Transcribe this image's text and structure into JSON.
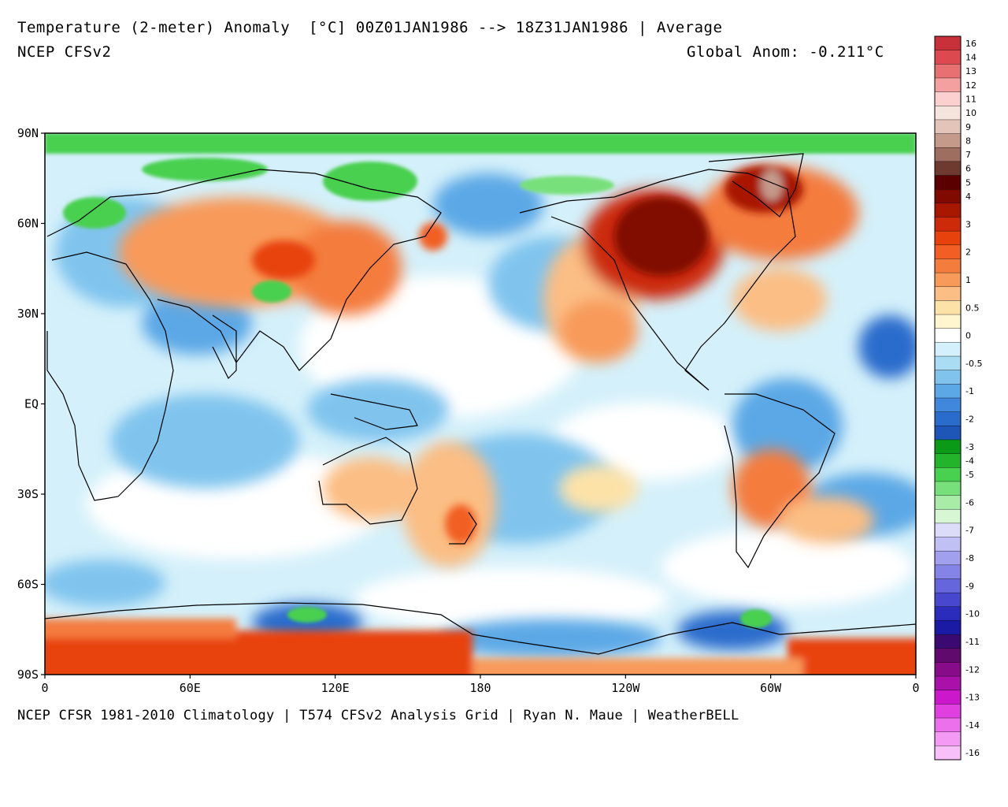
{
  "title": "Temperature (2-meter) Anomaly  [°C] 00Z01JAN1986 --> 18Z31JAN1986 | Average",
  "model": "NCEP CFSv2",
  "global_anom": "Global Anom: -0.211°C",
  "footer": "NCEP CFSR 1981-2010 Climatology | T574 CFSv2 Analysis Grid | Ryan N. Maue | WeatherBELL",
  "lat_ticks": [
    "90N",
    "60N",
    "30N",
    "EQ",
    "30S",
    "60S",
    "90S"
  ],
  "lon_ticks": [
    "0",
    "60E",
    "120E",
    "180",
    "120W",
    "60W",
    "0"
  ],
  "legend": [
    {
      "label": "16",
      "color": "#c8303a"
    },
    {
      "label": "14",
      "color": "#dc4a50"
    },
    {
      "label": "13",
      "color": "#e87072"
    },
    {
      "label": "12",
      "color": "#f4a0a0"
    },
    {
      "label": "11",
      "color": "#fbd0cf"
    },
    {
      "label": "10",
      "color": "#f5e4dc"
    },
    {
      "label": "9",
      "color": "#e2c4b8"
    },
    {
      "label": "8",
      "color": "#c49a8a"
    },
    {
      "label": "7",
      "color": "#9e6e60"
    },
    {
      "label": "6",
      "color": "#6e3a30"
    },
    {
      "label": "5",
      "color": "#5a0000"
    },
    {
      "label": "4",
      "color": "#800a00"
    },
    {
      "label": "",
      "color": "#a81800"
    },
    {
      "label": "3",
      "color": "#cc2a08"
    },
    {
      "label": "",
      "color": "#e8420c"
    },
    {
      "label": "2",
      "color": "#f25e24"
    },
    {
      "label": "",
      "color": "#f47c3c"
    },
    {
      "label": "1",
      "color": "#f89a5a"
    },
    {
      "label": "",
      "color": "#fbbe84"
    },
    {
      "label": "0.5",
      "color": "#fde2a8"
    },
    {
      "label": "",
      "color": "#fff6d0"
    },
    {
      "label": "0",
      "color": "#ffffff"
    },
    {
      "label": "",
      "color": "#d4f0fa"
    },
    {
      "label": "-0.5",
      "color": "#aadcf4"
    },
    {
      "label": "",
      "color": "#80c4ee"
    },
    {
      "label": "-1",
      "color": "#5ca8e6"
    },
    {
      "label": "",
      "color": "#4088dc"
    },
    {
      "label": "-2",
      "color": "#2a6ccc"
    },
    {
      "label": "",
      "color": "#1e56b8"
    },
    {
      "label": "-3",
      "color": "#0a9a18"
    },
    {
      "label": "-4",
      "color": "#24b42c"
    },
    {
      "label": "-5",
      "color": "#48d050"
    },
    {
      "label": "",
      "color": "#78e07a"
    },
    {
      "label": "-6",
      "color": "#a8eca8"
    },
    {
      "label": "",
      "color": "#d6f6d4"
    },
    {
      "label": "-7",
      "color": "#dcdcf8"
    },
    {
      "label": "",
      "color": "#c0c0f4"
    },
    {
      "label": "-8",
      "color": "#a0a0ee"
    },
    {
      "label": "",
      "color": "#8484e6"
    },
    {
      "label": "-9",
      "color": "#6666dc"
    },
    {
      "label": "",
      "color": "#4848ce"
    },
    {
      "label": "-10",
      "color": "#2c2cbc"
    },
    {
      "label": "",
      "color": "#1a1aa4"
    },
    {
      "label": "-11",
      "color": "#3a0a70"
    },
    {
      "label": "",
      "color": "#600a6e"
    },
    {
      "label": "-12",
      "color": "#880c8a"
    },
    {
      "label": "",
      "color": "#aa10aa"
    },
    {
      "label": "-13",
      "color": "#cc18cc"
    },
    {
      "label": "",
      "color": "#e040e0"
    },
    {
      "label": "-14",
      "color": "#ec70ec"
    },
    {
      "label": "",
      "color": "#f49af4"
    },
    {
      "label": "-16",
      "color": "#f8c0f8"
    }
  ],
  "colors": {
    "frame": "#000000",
    "background": "#ffffff",
    "warm_strong": "#c42a08",
    "warm": "#f47c3c",
    "warm_light": "#fbbe84",
    "neutral": "#ffffff",
    "cool_light": "#aadcf4",
    "cool": "#5ca8e6",
    "cool_strong": "#2a6ccc",
    "green": "#48d050",
    "dark_red": "#800a00"
  }
}
